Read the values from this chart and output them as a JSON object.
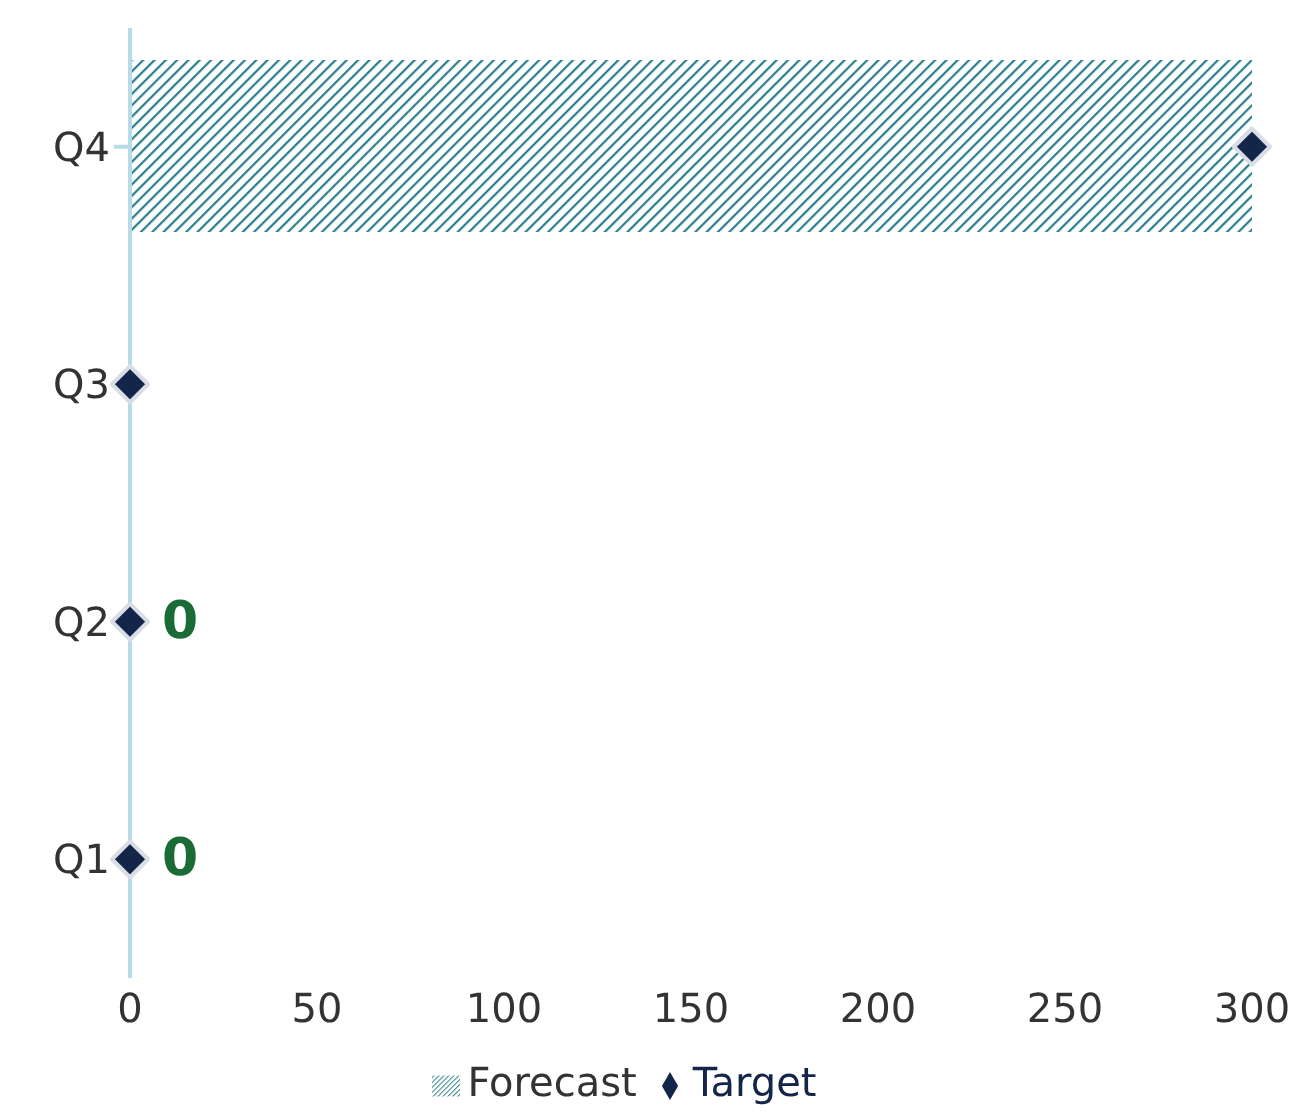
{
  "chart_data": {
    "type": "bar",
    "orientation": "horizontal",
    "categories": [
      "Q4",
      "Q3",
      "Q2",
      "Q1"
    ],
    "series": [
      {
        "name": "Forecast",
        "color": "#2a7f8c",
        "values": [
          300,
          null,
          0,
          0
        ],
        "value_labels": [
          null,
          null,
          "0",
          "0"
        ]
      },
      {
        "name": "Target",
        "type": "scatter",
        "color": "#14254a",
        "values": [
          300,
          0,
          0,
          0
        ]
      }
    ],
    "xlim": [
      0,
      300
    ],
    "xticks": [
      0,
      50,
      100,
      150,
      200,
      250,
      300
    ],
    "grid": false,
    "legend": "bottom",
    "marker": "diamond"
  }
}
